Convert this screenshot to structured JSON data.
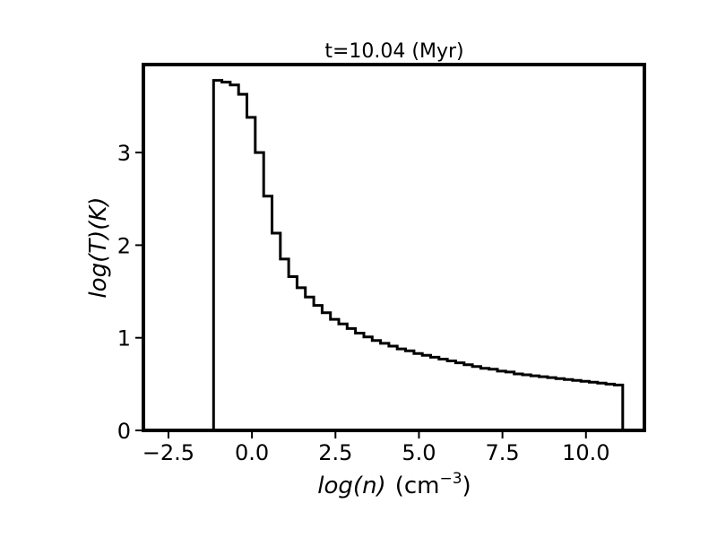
{
  "chart_data": {
    "type": "step",
    "title": "t=10.04 (Myr)",
    "xlabel_var": "log(n)",
    "xlabel_unit": "(cm",
    "xlabel_exp": "−3",
    "xlabel_close": ")",
    "ylabel": "log(T)(K)",
    "xlim": [
      -3.25,
      11.75
    ],
    "ylim": [
      0,
      3.95
    ],
    "xticks": [
      -2.5,
      0.0,
      2.5,
      5.0,
      7.5,
      10.0
    ],
    "xtick_labels": [
      "−2.5",
      "0.0",
      "2.5",
      "5.0",
      "7.5",
      "10.0"
    ],
    "yticks": [
      0,
      1,
      2,
      3
    ],
    "ytick_labels": [
      "0",
      "1",
      "2",
      "3"
    ],
    "grid": false,
    "legend": "none",
    "series": [
      {
        "color": "#000000",
        "x_edges": [
          -1.15,
          -0.9,
          -0.65,
          -0.4,
          -0.15,
          0.1,
          0.35,
          0.6,
          0.85,
          1.1,
          1.35,
          1.6,
          1.85,
          2.1,
          2.35,
          2.6,
          2.85,
          3.1,
          3.35,
          3.6,
          3.85,
          4.1,
          4.35,
          4.6,
          4.85,
          5.1,
          5.35,
          5.6,
          5.85,
          6.1,
          6.35,
          6.6,
          6.85,
          7.1,
          7.35,
          7.6,
          7.85,
          8.1,
          8.35,
          8.6,
          8.85,
          9.1,
          9.35,
          9.6,
          9.85,
          10.1,
          10.35,
          10.6,
          10.85,
          11.1
        ],
        "values": [
          3.78,
          3.76,
          3.73,
          3.63,
          3.38,
          3.0,
          2.53,
          2.13,
          1.85,
          1.66,
          1.54,
          1.44,
          1.35,
          1.27,
          1.2,
          1.15,
          1.1,
          1.05,
          1.01,
          0.97,
          0.94,
          0.91,
          0.88,
          0.86,
          0.83,
          0.81,
          0.79,
          0.77,
          0.75,
          0.73,
          0.71,
          0.69,
          0.67,
          0.66,
          0.64,
          0.63,
          0.61,
          0.6,
          0.59,
          0.58,
          0.57,
          0.56,
          0.55,
          0.54,
          0.53,
          0.52,
          0.51,
          0.5,
          0.49
        ]
      }
    ]
  }
}
